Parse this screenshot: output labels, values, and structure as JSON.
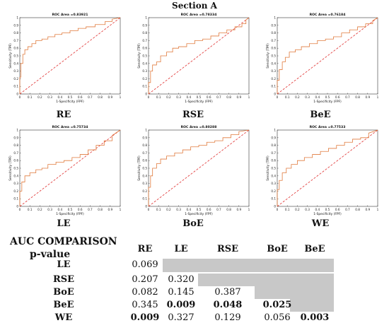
{
  "section_title": "Section A",
  "chart_data": [
    {
      "type": "line",
      "title": "ROC Area =0.83921",
      "xlabel": "1-Specificity (FPF)",
      "ylabel": "Sensitivity (TPF)",
      "label": "RE",
      "xlim": [
        0,
        1
      ],
      "ylim": [
        0,
        1
      ],
      "xticks": [
        "0",
        "0.1",
        "0.2",
        "0.3",
        "0.4",
        "0.5",
        "0.6",
        "0.7",
        "0.8",
        "0.9",
        "1"
      ],
      "yticks": [
        "0",
        "0.1",
        "0.2",
        "0.3",
        "0.4",
        "0.5",
        "0.6",
        "0.7",
        "0.8",
        "0.9",
        "1"
      ],
      "series": [
        {
          "x": [
            0,
            0,
            0.01,
            0.01,
            0.03,
            0.03,
            0.05,
            0.05,
            0.08,
            0.08,
            0.12,
            0.12,
            0.16,
            0.16,
            0.22,
            0.22,
            0.28,
            0.28,
            0.35,
            0.35,
            0.42,
            0.42,
            0.5,
            0.5,
            0.58,
            0.58,
            0.66,
            0.66,
            0.75,
            0.75,
            0.85,
            0.85,
            0.92,
            0.92,
            1
          ],
          "y": [
            0,
            0.22,
            0.22,
            0.4,
            0.4,
            0.52,
            0.52,
            0.58,
            0.58,
            0.62,
            0.62,
            0.66,
            0.66,
            0.7,
            0.7,
            0.72,
            0.72,
            0.75,
            0.75,
            0.78,
            0.78,
            0.8,
            0.8,
            0.83,
            0.83,
            0.86,
            0.86,
            0.88,
            0.88,
            0.91,
            0.91,
            0.95,
            0.95,
            0.98,
            1
          ]
        },
        {
          "x": [
            0,
            1
          ],
          "y": [
            0,
            1
          ]
        }
      ]
    },
    {
      "type": "line",
      "title": "ROC Area =0.78334",
      "xlabel": "1-Specificity (FPF)",
      "ylabel": "Sensitivity (TPF)",
      "label": "RSE",
      "xlim": [
        0,
        1
      ],
      "ylim": [
        0,
        1
      ],
      "xticks": [
        "0",
        "0.1",
        "0.2",
        "0.3",
        "0.4",
        "0.5",
        "0.6",
        "0.7",
        "0.8",
        "0.9",
        "1"
      ],
      "yticks": [
        "0",
        "0.1",
        "0.2",
        "0.3",
        "0.4",
        "0.5",
        "0.6",
        "0.7",
        "0.8",
        "0.9",
        "1"
      ],
      "series": [
        {
          "x": [
            0,
            0,
            0.02,
            0.02,
            0.04,
            0.04,
            0.08,
            0.08,
            0.12,
            0.12,
            0.18,
            0.18,
            0.24,
            0.24,
            0.3,
            0.3,
            0.38,
            0.38,
            0.46,
            0.46,
            0.54,
            0.54,
            0.62,
            0.62,
            0.7,
            0.7,
            0.78,
            0.78,
            0.86,
            0.86,
            0.93,
            0.93,
            0.97,
            0.97,
            1
          ],
          "y": [
            0,
            0.15,
            0.15,
            0.3,
            0.3,
            0.38,
            0.38,
            0.42,
            0.42,
            0.5,
            0.5,
            0.55,
            0.55,
            0.6,
            0.6,
            0.62,
            0.62,
            0.66,
            0.66,
            0.7,
            0.7,
            0.72,
            0.72,
            0.76,
            0.76,
            0.8,
            0.8,
            0.84,
            0.84,
            0.88,
            0.88,
            0.92,
            0.92,
            0.97,
            1
          ]
        },
        {
          "x": [
            0,
            1
          ],
          "y": [
            0,
            1
          ]
        }
      ]
    },
    {
      "type": "line",
      "title": "ROC Area =0.76184",
      "xlabel": "1-Specificity (FPF)",
      "ylabel": "Sensitivity (TPF)",
      "label": "BeE",
      "xlim": [
        0,
        1
      ],
      "ylim": [
        0,
        1
      ],
      "xticks": [
        "0",
        "0.1",
        "0.2",
        "0.3",
        "0.4",
        "0.5",
        "0.6",
        "0.7",
        "0.8",
        "0.9",
        "1"
      ],
      "yticks": [
        "0",
        "0.1",
        "0.2",
        "0.3",
        "0.4",
        "0.5",
        "0.6",
        "0.7",
        "0.8",
        "0.9",
        "1"
      ],
      "series": [
        {
          "x": [
            0,
            0,
            0.02,
            0.02,
            0.05,
            0.05,
            0.08,
            0.08,
            0.12,
            0.12,
            0.18,
            0.18,
            0.24,
            0.24,
            0.32,
            0.32,
            0.4,
            0.4,
            0.48,
            0.48,
            0.56,
            0.56,
            0.64,
            0.64,
            0.72,
            0.72,
            0.8,
            0.8,
            0.88,
            0.88,
            0.95,
            0.95,
            1
          ],
          "y": [
            0,
            0.18,
            0.18,
            0.32,
            0.32,
            0.42,
            0.42,
            0.48,
            0.48,
            0.55,
            0.55,
            0.58,
            0.58,
            0.62,
            0.62,
            0.66,
            0.66,
            0.7,
            0.7,
            0.72,
            0.72,
            0.75,
            0.75,
            0.8,
            0.8,
            0.84,
            0.84,
            0.88,
            0.88,
            0.92,
            0.92,
            0.96,
            1
          ]
        },
        {
          "x": [
            0,
            1
          ],
          "y": [
            0,
            1
          ]
        }
      ]
    },
    {
      "type": "line",
      "title": "ROC Area =0.75734",
      "xlabel": "1-Specificity (FPF)",
      "ylabel": "Sensitivity (TPF)",
      "label": "LE",
      "xlim": [
        0,
        1
      ],
      "ylim": [
        0,
        1
      ],
      "xticks": [
        "0",
        "0.1",
        "0.2",
        "0.3",
        "0.4",
        "0.5",
        "0.6",
        "0.7",
        "0.8",
        "0.9",
        "1"
      ],
      "yticks": [
        "0",
        "0.1",
        "0.2",
        "0.3",
        "0.4",
        "0.5",
        "0.6",
        "0.7",
        "0.8",
        "0.9",
        "1"
      ],
      "series": [
        {
          "x": [
            0,
            0,
            0.02,
            0.02,
            0.05,
            0.05,
            0.1,
            0.1,
            0.16,
            0.16,
            0.22,
            0.22,
            0.28,
            0.28,
            0.36,
            0.36,
            0.44,
            0.44,
            0.52,
            0.52,
            0.6,
            0.6,
            0.68,
            0.68,
            0.76,
            0.76,
            0.84,
            0.84,
            0.92,
            0.92,
            1
          ],
          "y": [
            0,
            0.2,
            0.2,
            0.32,
            0.32,
            0.4,
            0.4,
            0.44,
            0.44,
            0.48,
            0.48,
            0.5,
            0.5,
            0.55,
            0.55,
            0.58,
            0.58,
            0.6,
            0.6,
            0.64,
            0.64,
            0.68,
            0.68,
            0.74,
            0.74,
            0.8,
            0.8,
            0.86,
            0.86,
            0.93,
            1
          ]
        },
        {
          "x": [
            0,
            1
          ],
          "y": [
            0,
            1
          ]
        }
      ]
    },
    {
      "type": "line",
      "title": "ROC Area =0.80288",
      "xlabel": "1-Specificity (FPF)",
      "ylabel": "Sensitivity (TPF)",
      "label": "BoE",
      "xlim": [
        0,
        1
      ],
      "ylim": [
        0,
        1
      ],
      "xticks": [
        "0",
        "0.1",
        "0.2",
        "0.3",
        "0.4",
        "0.5",
        "0.6",
        "0.7",
        "0.8",
        "0.9",
        "1"
      ],
      "yticks": [
        "0",
        "0.1",
        "0.2",
        "0.3",
        "0.4",
        "0.5",
        "0.6",
        "0.7",
        "0.8",
        "0.9",
        "1"
      ],
      "series": [
        {
          "x": [
            0,
            0,
            0.02,
            0.02,
            0.04,
            0.04,
            0.08,
            0.08,
            0.12,
            0.12,
            0.18,
            0.18,
            0.26,
            0.26,
            0.34,
            0.34,
            0.42,
            0.42,
            0.5,
            0.5,
            0.58,
            0.58,
            0.66,
            0.66,
            0.74,
            0.74,
            0.82,
            0.82,
            0.9,
            0.9,
            1
          ],
          "y": [
            0,
            0.25,
            0.25,
            0.4,
            0.4,
            0.5,
            0.5,
            0.56,
            0.56,
            0.62,
            0.62,
            0.66,
            0.66,
            0.7,
            0.7,
            0.74,
            0.74,
            0.78,
            0.78,
            0.8,
            0.8,
            0.84,
            0.84,
            0.86,
            0.86,
            0.9,
            0.9,
            0.94,
            0.94,
            0.98,
            1
          ]
        },
        {
          "x": [
            0,
            1
          ],
          "y": [
            0,
            1
          ]
        }
      ]
    },
    {
      "type": "line",
      "title": "ROC Area =0.77533",
      "xlabel": "1-Specificity (FPF)",
      "ylabel": "Sensitivity (TPF)",
      "label": "WE",
      "xlim": [
        0,
        1
      ],
      "ylim": [
        0,
        1
      ],
      "xticks": [
        "0",
        "0.1",
        "0.2",
        "0.3",
        "0.4",
        "0.5",
        "0.6",
        "0.7",
        "0.8",
        "0.9",
        "1"
      ],
      "yticks": [
        "0",
        "0.1",
        "0.2",
        "0.3",
        "0.4",
        "0.5",
        "0.6",
        "0.7",
        "0.8",
        "0.9",
        "1"
      ],
      "series": [
        {
          "x": [
            0,
            0,
            0.02,
            0.02,
            0.05,
            0.05,
            0.09,
            0.09,
            0.14,
            0.14,
            0.2,
            0.2,
            0.27,
            0.27,
            0.35,
            0.35,
            0.43,
            0.43,
            0.51,
            0.51,
            0.59,
            0.59,
            0.67,
            0.67,
            0.75,
            0.75,
            0.83,
            0.83,
            0.91,
            0.91,
            1
          ],
          "y": [
            0,
            0.22,
            0.22,
            0.34,
            0.34,
            0.44,
            0.44,
            0.5,
            0.5,
            0.55,
            0.55,
            0.6,
            0.6,
            0.64,
            0.64,
            0.68,
            0.68,
            0.72,
            0.72,
            0.76,
            0.76,
            0.8,
            0.8,
            0.84,
            0.84,
            0.88,
            0.88,
            0.9,
            0.9,
            0.96,
            1
          ]
        },
        {
          "x": [
            0,
            1
          ],
          "y": [
            0,
            1
          ]
        }
      ]
    }
  ],
  "colors": {
    "roc_curve": "#e07a3c",
    "chance_line": "#e03030",
    "axis": "#333333",
    "shade": "#c8c8c8"
  },
  "table": {
    "title": "AUC COMPARISON",
    "subtitle": "p-value",
    "columns": [
      "RE",
      "LE",
      "RSE",
      "BoE",
      "BeE"
    ],
    "rows": [
      {
        "label": "LE",
        "cells": [
          {
            "v": "0.069",
            "b": false
          }
        ]
      },
      {
        "label": "RSE",
        "cells": [
          {
            "v": "0.207",
            "b": false
          },
          {
            "v": "0.320",
            "b": false
          }
        ]
      },
      {
        "label": "BoE",
        "cells": [
          {
            "v": "0.082",
            "b": false
          },
          {
            "v": "0.145",
            "b": false
          },
          {
            "v": "0.387",
            "b": false
          }
        ]
      },
      {
        "label": "BeE",
        "cells": [
          {
            "v": "0.345",
            "b": false
          },
          {
            "v": "0.009",
            "b": true
          },
          {
            "v": "0.048",
            "b": true
          },
          {
            "v": "0.025",
            "b": true
          }
        ]
      },
      {
        "label": "WE",
        "cells": [
          {
            "v": "0.009",
            "b": true
          },
          {
            "v": "0.327",
            "b": false
          },
          {
            "v": "0.129",
            "b": false
          },
          {
            "v": "0.056",
            "b": false
          },
          {
            "v": "0.003",
            "b": true
          }
        ]
      }
    ]
  }
}
